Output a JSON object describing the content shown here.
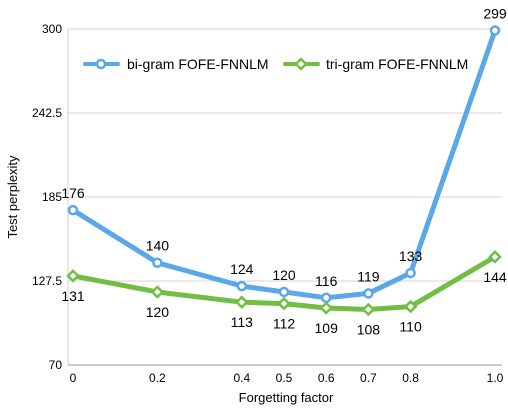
{
  "chart_data": {
    "type": "line",
    "categories": [
      "0",
      "0.2",
      "0.4",
      "0.5",
      "0.6",
      "0.7",
      "0.8",
      "1.0"
    ],
    "ylim": [
      70,
      300
    ],
    "yticks": [
      "70",
      "127.5",
      "185",
      "242.5",
      "300"
    ],
    "xlabel": "Forgetting factor",
    "ylabel": "Test perplexity",
    "grid": "horizontal",
    "legend_position": "top",
    "series": [
      {
        "name": "bi-gram FOFE-FNNLM",
        "color": "#5aa7e9",
        "values": [
          176,
          140,
          124,
          120,
          116,
          119,
          133,
          299
        ]
      },
      {
        "name": "tri-gram FOFE-FNNLM",
        "color": "#72bd44",
        "values": [
          131,
          120,
          113,
          112,
          109,
          108,
          110,
          144
        ]
      }
    ]
  }
}
